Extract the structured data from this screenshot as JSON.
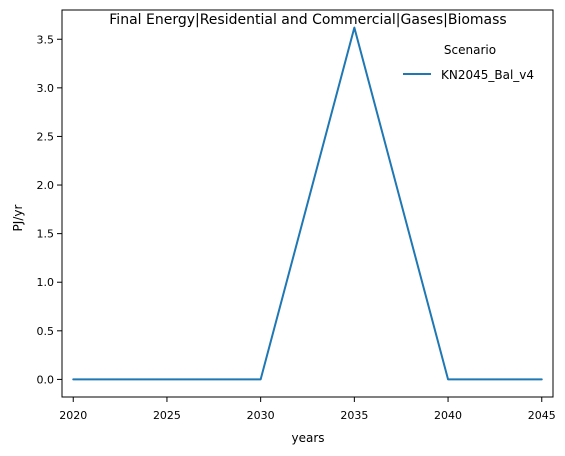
{
  "chart_data": {
    "type": "line",
    "title": "Final Energy|Residential and Commercial|Gases|Biomass",
    "xlabel": "years",
    "ylabel": "PJ/yr",
    "x": [
      2020,
      2025,
      2030,
      2035,
      2040,
      2045
    ],
    "series": [
      {
        "name": "KN2045_Bal_v4",
        "values": [
          0,
          0,
          0,
          3.62,
          0,
          0
        ],
        "color": "#1f77b4"
      }
    ],
    "xlim": [
      2019.4,
      2045.6
    ],
    "ylim": [
      -0.181,
      3.801
    ],
    "x_ticks": [
      2020,
      2025,
      2030,
      2035,
      2040,
      2045
    ],
    "x_tick_labels": [
      "2020",
      "2025",
      "2030",
      "2035",
      "2040",
      "2045"
    ],
    "y_ticks": [
      0,
      0.5,
      1,
      1.5,
      2,
      2.5,
      3,
      3.5
    ],
    "y_tick_labels": [
      "0.0",
      "0.5",
      "1.0",
      "1.5",
      "2.0",
      "2.5",
      "3.0",
      "3.5"
    ],
    "grid": false,
    "legend": {
      "title": "Scenario",
      "placement": "top-right"
    }
  }
}
